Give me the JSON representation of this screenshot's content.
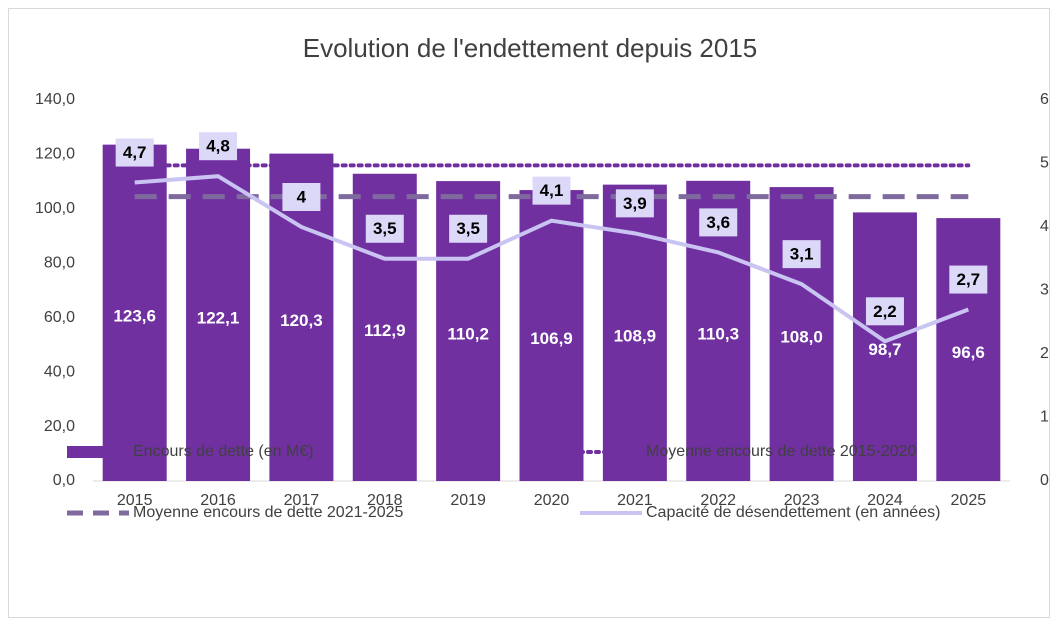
{
  "chart_data": {
    "type": "bar",
    "title": "Evolution de l'endettement depuis 2015",
    "categories": [
      "2015",
      "2016",
      "2017",
      "2018",
      "2019",
      "2020",
      "2021",
      "2022",
      "2023",
      "2024",
      "2025"
    ],
    "series": [
      {
        "name": "Encours de dette (en M€)",
        "type": "bar",
        "color": "#7030a0",
        "values": [
          123.6,
          122.1,
          120.3,
          112.9,
          110.2,
          106.9,
          108.9,
          110.3,
          108.0,
          98.7,
          96.6
        ],
        "value_labels": [
          "123,6",
          "122,1",
          "120,3",
          "112,9",
          "110,2",
          "106,9",
          "108,9",
          "110,3",
          "108,0",
          "98,7",
          "96,6"
        ]
      },
      {
        "name": "Moyenne encours de dette 2015-2020",
        "type": "line",
        "style": "dotted",
        "color": "#7030a0",
        "values": [
          116.0,
          116.0,
          116.0,
          116.0,
          116.0,
          116.0,
          116.0,
          116.0,
          116.0,
          116.0,
          116.0
        ]
      },
      {
        "name": "Moyenne encours de dette 2021-2025",
        "type": "line",
        "style": "dashed",
        "color": "#7f6a9e",
        "values": [
          104.5,
          104.5,
          104.5,
          104.5,
          104.5,
          104.5,
          104.5,
          104.5,
          104.5,
          104.5,
          104.5
        ]
      },
      {
        "name": "Capacité de désendettement (en années)",
        "type": "line",
        "style": "solid",
        "color": "#c9c4f2",
        "axis": "y2",
        "values": [
          4.7,
          4.8,
          4,
          3.5,
          3.5,
          4.1,
          3.9,
          3.6,
          3.1,
          2.2,
          2.7
        ],
        "value_labels": [
          "4,7",
          "4,8",
          "4",
          "3,5",
          "3,5",
          "4,1",
          "3,9",
          "3,6",
          "3,1",
          "2,2",
          "2,7"
        ]
      }
    ],
    "ylim": [
      0,
      140
    ],
    "yticks": [
      {
        "value": 0,
        "label": "0,0"
      },
      {
        "value": 20,
        "label": "20,0"
      },
      {
        "value": 40,
        "label": "40,0"
      },
      {
        "value": 60,
        "label": "60,0"
      },
      {
        "value": 80,
        "label": "80,0"
      },
      {
        "value": 100,
        "label": "100,0"
      },
      {
        "value": 120,
        "label": "120,0"
      },
      {
        "value": 140,
        "label": "140,0"
      }
    ],
    "y2lim": [
      0,
      6
    ],
    "y2ticks": [
      0,
      1,
      2,
      3,
      4,
      5,
      6
    ],
    "grid": false,
    "legend": "bottom"
  }
}
